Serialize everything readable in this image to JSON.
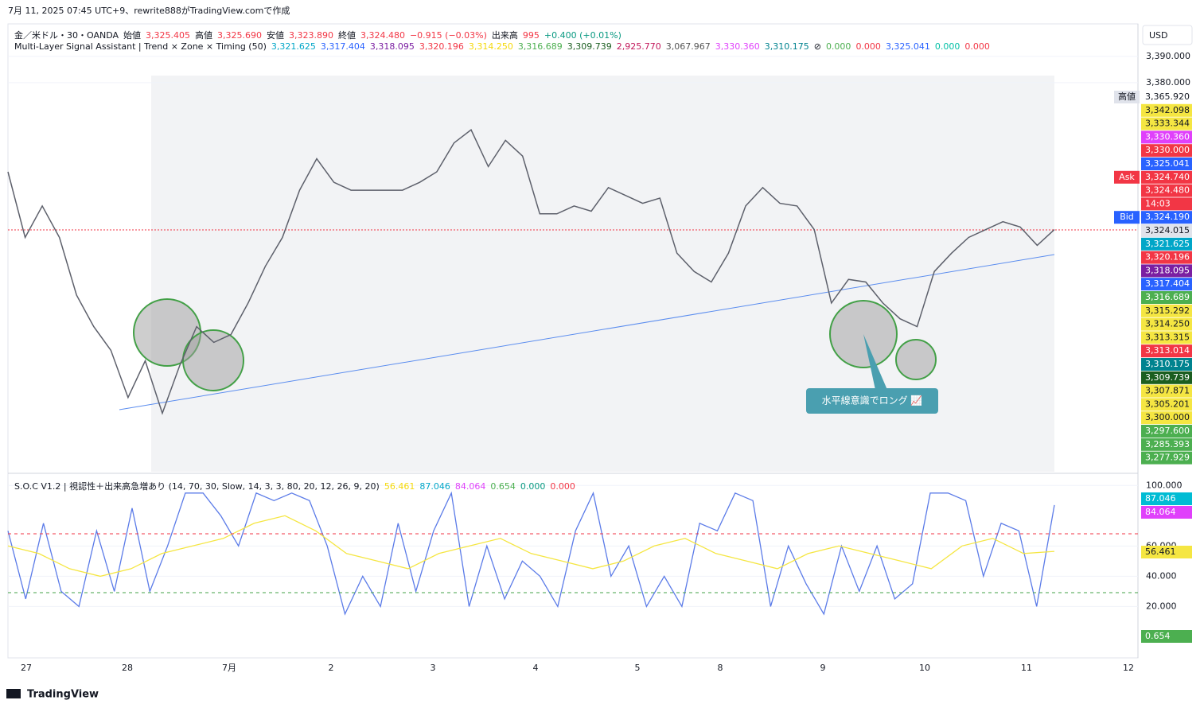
{
  "header": {
    "caption": "7月 11, 2025 07:45 UTC+9、rewrite888がTradingView.comで作成"
  },
  "legend_main": [
    {
      "text": "金／米ドル・30・OANDA",
      "color": "#131722"
    },
    {
      "text": "始値",
      "color": "#131722"
    },
    {
      "text": "3,325.405",
      "color": "#f23645"
    },
    {
      "text": "高値",
      "color": "#131722"
    },
    {
      "text": "3,325.690",
      "color": "#f23645"
    },
    {
      "text": "安値",
      "color": "#131722"
    },
    {
      "text": "3,323.890",
      "color": "#f23645"
    },
    {
      "text": "終値",
      "color": "#131722"
    },
    {
      "text": "3,324.480",
      "color": "#f23645"
    },
    {
      "text": "−0.915 (−0.03%)",
      "color": "#f23645"
    },
    {
      "text": "出来高",
      "color": "#131722"
    },
    {
      "text": "995",
      "color": "#f23645"
    },
    {
      "text": "+0.400 (+0.01%)",
      "color": "#089981"
    }
  ],
  "legend_indicator": [
    {
      "text": "Multi-Layer Signal Assistant | Trend × Zone × Timing (50)",
      "color": "#131722"
    },
    {
      "text": "3,321.625",
      "color": "#00a6c8"
    },
    {
      "text": "3,317.404",
      "color": "#2962ff"
    },
    {
      "text": "3,318.095",
      "color": "#7b1fa2"
    },
    {
      "text": "3,320.196",
      "color": "#f23645"
    },
    {
      "text": "3,314.250",
      "color": "#f5d90a"
    },
    {
      "text": "3,316.689",
      "color": "#4caf50"
    },
    {
      "text": "3,309.739",
      "color": "#1b5e20"
    },
    {
      "text": "2,925.770",
      "color": "#c2185b"
    },
    {
      "text": "3,067.967",
      "color": "#555555"
    },
    {
      "text": "3,330.360",
      "color": "#e040fb"
    },
    {
      "text": "3,310.175",
      "color": "#00838f"
    },
    {
      "text": "⊘",
      "color": "#131722"
    },
    {
      "text": "0.000",
      "color": "#4caf50"
    },
    {
      "text": "0.000",
      "color": "#f23645"
    },
    {
      "text": "3,325.041",
      "color": "#2962ff"
    },
    {
      "text": "0.000",
      "color": "#00bfa5"
    },
    {
      "text": "0.000",
      "color": "#f23645"
    }
  ],
  "legend_osc": [
    {
      "text": "S.O.C V1.2 | 視認性＋出来高急増あり (14, 70, 30, Slow, 14, 3, 3, 80, 20, 12, 26, 9, 20)",
      "color": "#131722"
    },
    {
      "text": "56.461",
      "color": "#f5d90a"
    },
    {
      "text": "87.046",
      "color": "#00a6c8"
    },
    {
      "text": "84.064",
      "color": "#e040fb"
    },
    {
      "text": "0.654",
      "color": "#4caf50"
    },
    {
      "text": "0.000",
      "color": "#089981"
    },
    {
      "text": "0.000",
      "color": "#f23645"
    }
  ],
  "currency": "USD",
  "price_badges": [
    {
      "tag": "高値",
      "text": "3,365.920",
      "color": "#ffffff"
    },
    {
      "text": "3,342.098",
      "color": "#f5e642"
    },
    {
      "text": "3,333.344",
      "color": "#f5e642"
    },
    {
      "text": "3,330.360",
      "color": "#e040fb"
    },
    {
      "text": "3,330.000",
      "color": "#f23645"
    },
    {
      "text": "3,325.041",
      "color": "#2962ff"
    },
    {
      "tag": "Ask",
      "text": "3,324.740",
      "color": "#f23645"
    },
    {
      "text": "3,324.480",
      "color": "#f23645"
    },
    {
      "text": "14:03",
      "color": "#f23645"
    },
    {
      "tag": "Bid",
      "text": "3,324.190",
      "color": "#2962ff"
    },
    {
      "text": "3,324.015",
      "color": "#e0e3eb"
    },
    {
      "text": "3,321.625",
      "color": "#00a6c8"
    },
    {
      "text": "3,320.196",
      "color": "#f23645"
    },
    {
      "text": "3,318.095",
      "color": "#7b1fa2"
    },
    {
      "text": "3,317.404",
      "color": "#2962ff"
    },
    {
      "text": "3,316.689",
      "color": "#4caf50"
    },
    {
      "text": "3,315.292",
      "color": "#f5e642"
    },
    {
      "text": "3,314.250",
      "color": "#f5e642"
    },
    {
      "text": "3,313.315",
      "color": "#f5e642"
    },
    {
      "text": "3,313.014",
      "color": "#f23645"
    },
    {
      "text": "3,310.175",
      "color": "#00838f"
    },
    {
      "text": "3,309.739",
      "color": "#1b5e20"
    },
    {
      "text": "3,307.871",
      "color": "#f5e642"
    },
    {
      "text": "3,305.201",
      "color": "#f5e642"
    },
    {
      "text": "3,300.000",
      "color": "#f5e642"
    },
    {
      "text": "3,297.600",
      "color": "#4caf50"
    },
    {
      "text": "3,285.393",
      "color": "#4caf50"
    },
    {
      "text": "3,277.929",
      "color": "#4caf50"
    }
  ],
  "osc_badges": [
    {
      "text": "87.046",
      "color": "#00bcd4"
    },
    {
      "text": "84.064",
      "color": "#e040fb"
    },
    {
      "text": "56.461",
      "color": "#f5e642"
    },
    {
      "text": "0.654",
      "color": "#4caf50"
    }
  ],
  "time_labels": [
    "27",
    "28",
    "7月",
    "2",
    "3",
    "4",
    "5",
    "8",
    "9",
    "10",
    "11",
    "12"
  ],
  "annotation": "水平線意識でロング 📈",
  "brand": "TradingView",
  "chart_data": [
    {
      "type": "line",
      "color": "#5d606b",
      "values": [
        3346,
        3321,
        3333,
        3321,
        3299,
        3287,
        3278,
        3260,
        3274,
        3254,
        3272,
        3287,
        3281,
        3284,
        3296,
        3310,
        3321,
        3339,
        3351,
        3342,
        3339,
        3339,
        3339,
        3339,
        3342,
        3346,
        3357,
        3362,
        3348,
        3358,
        3352,
        3330,
        3330,
        3333,
        3331,
        3340,
        3337,
        3334,
        3336,
        3315,
        3308,
        3304,
        3315,
        3333,
        3340,
        3334,
        3333,
        3324,
        3296,
        3305,
        3304,
        3296,
        3290,
        3287,
        3308,
        3315,
        3321,
        3324,
        3327,
        3325,
        3318,
        3324
      ],
      "ylim": [
        3231.7,
        3402.4
      ],
      "yticks": [
        {
          "value": 3390,
          "label": "3,390.000"
        },
        {
          "value": 3380,
          "label": "3,380.000"
        }
      ]
    },
    {
      "type": "line",
      "series": [
        {
          "color": "#5b7be8",
          "values": [
            70,
            25,
            75,
            30,
            20,
            70,
            30,
            85,
            30,
            60,
            95,
            95,
            80,
            60,
            95,
            90,
            95,
            90,
            60,
            15,
            40,
            20,
            75,
            30,
            70,
            95,
            20,
            60,
            25,
            50,
            40,
            20,
            70,
            95,
            40,
            60,
            20,
            40,
            20,
            75,
            70,
            95,
            90,
            20,
            60,
            35,
            15,
            60,
            30,
            60,
            25,
            35,
            95,
            95,
            90,
            40,
            75,
            70,
            20,
            87.046
          ]
        },
        {
          "color": "#f5e642",
          "values": [
            60,
            55,
            45,
            40,
            45,
            55,
            60,
            65,
            75,
            80,
            70,
            55,
            50,
            45,
            55,
            60,
            65,
            55,
            50,
            45,
            50,
            60,
            65,
            55,
            50,
            45,
            55,
            60,
            55,
            50,
            45,
            60,
            65,
            55,
            56.461
          ]
        }
      ],
      "ylim": [
        -14,
        107
      ],
      "yticks": [
        {
          "value": 100,
          "label": "100.000"
        },
        {
          "value": 60,
          "label": "60.000"
        },
        {
          "value": 40,
          "label": "40.000"
        },
        {
          "value": 20,
          "label": "20.000"
        }
      ]
    }
  ]
}
